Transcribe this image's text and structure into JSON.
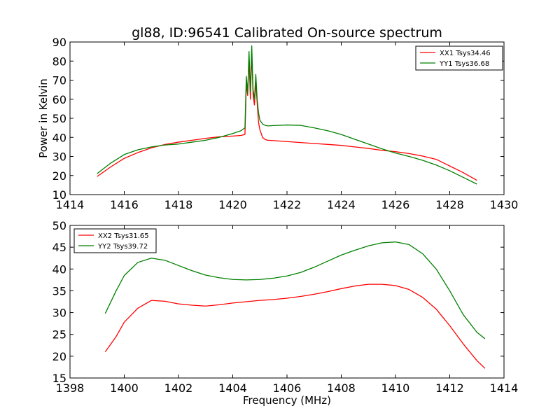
{
  "figure": {
    "title": "gl88, ID:96541 Calibrated On-source spectrum",
    "background": "#ffffff"
  },
  "chart_data": [
    {
      "type": "line",
      "title": "gl88, ID:96541 Calibrated On-source spectrum",
      "xlabel": "",
      "ylabel": "Power in Kelvin",
      "xlim": [
        1414,
        1430
      ],
      "ylim": [
        10,
        90
      ],
      "xticks": [
        1414,
        1416,
        1418,
        1420,
        1422,
        1424,
        1426,
        1428,
        1430
      ],
      "yticks": [
        10,
        20,
        30,
        40,
        50,
        60,
        70,
        80,
        90
      ],
      "grid": false,
      "legend_position": "top-right",
      "series": [
        {
          "name": "XX1 Tsys34.46",
          "color": "#ff0000",
          "x": [
            1415.0,
            1415.5,
            1416.0,
            1416.5,
            1417.0,
            1417.5,
            1418.0,
            1418.5,
            1419.0,
            1419.5,
            1420.0,
            1420.3,
            1420.45,
            1420.5,
            1420.55,
            1420.6,
            1420.65,
            1420.7,
            1420.75,
            1420.8,
            1420.85,
            1420.9,
            1420.95,
            1421.0,
            1421.1,
            1421.2,
            1421.3,
            1421.5,
            1422.0,
            1422.5,
            1423.0,
            1423.5,
            1424.0,
            1424.5,
            1425.0,
            1425.5,
            1426.0,
            1426.5,
            1427.0,
            1427.5,
            1428.0,
            1428.5,
            1429.0
          ],
          "y": [
            19.5,
            24.5,
            29.0,
            32.0,
            34.5,
            36.3,
            37.5,
            38.5,
            39.5,
            40.3,
            40.7,
            41.0,
            41.5,
            68.0,
            62.0,
            82.0,
            60.0,
            84.0,
            62.0,
            57.0,
            69.0,
            58.0,
            48.0,
            44.0,
            40.0,
            38.8,
            38.5,
            38.3,
            37.8,
            37.3,
            36.8,
            36.3,
            35.8,
            35.0,
            34.2,
            33.2,
            32.5,
            31.5,
            30.2,
            28.5,
            25.0,
            21.5,
            17.5
          ]
        },
        {
          "name": "YY1 Tsys36.68",
          "color": "#008000",
          "x": [
            1415.0,
            1415.5,
            1416.0,
            1416.5,
            1417.0,
            1417.5,
            1418.0,
            1418.5,
            1419.0,
            1419.5,
            1420.0,
            1420.3,
            1420.45,
            1420.5,
            1420.55,
            1420.6,
            1420.65,
            1420.7,
            1420.75,
            1420.8,
            1420.85,
            1420.9,
            1420.95,
            1421.0,
            1421.1,
            1421.2,
            1421.3,
            1421.5,
            1422.0,
            1422.5,
            1423.0,
            1423.5,
            1424.0,
            1424.5,
            1425.0,
            1425.5,
            1426.0,
            1426.5,
            1427.0,
            1427.5,
            1428.0,
            1428.5,
            1429.0
          ],
          "y": [
            21.0,
            26.5,
            31.0,
            33.5,
            35.0,
            36.0,
            36.5,
            37.5,
            38.5,
            40.0,
            42.0,
            43.5,
            45.0,
            72.0,
            63.0,
            85.0,
            64.0,
            88.0,
            65.0,
            60.0,
            73.0,
            60.0,
            53.0,
            49.0,
            47.0,
            46.3,
            46.0,
            46.2,
            46.5,
            46.3,
            45.0,
            43.5,
            41.5,
            39.0,
            36.5,
            34.0,
            31.8,
            30.0,
            28.0,
            25.5,
            22.5,
            19.0,
            15.5
          ]
        }
      ]
    },
    {
      "type": "line",
      "title": "",
      "xlabel": "Frequency (MHz)",
      "ylabel": "",
      "xlim": [
        1398,
        1414
      ],
      "ylim": [
        15,
        50
      ],
      "xticks": [
        1398,
        1400,
        1402,
        1404,
        1406,
        1408,
        1410,
        1412,
        1414
      ],
      "yticks": [
        15,
        20,
        25,
        30,
        35,
        40,
        45,
        50
      ],
      "grid": false,
      "legend_position": "top-left",
      "series": [
        {
          "name": "XX2 Tsys31.65",
          "color": "#ff0000",
          "x": [
            1399.3,
            1399.7,
            1400.0,
            1400.5,
            1401.0,
            1401.5,
            1402.0,
            1402.5,
            1403.0,
            1403.5,
            1404.0,
            1404.5,
            1405.0,
            1405.5,
            1406.0,
            1406.5,
            1407.0,
            1407.5,
            1408.0,
            1408.5,
            1409.0,
            1409.5,
            1410.0,
            1410.5,
            1411.0,
            1411.5,
            1412.0,
            1412.5,
            1413.0,
            1413.3
          ],
          "y": [
            21.0,
            24.5,
            27.8,
            31.0,
            32.8,
            32.6,
            32.0,
            31.7,
            31.5,
            31.8,
            32.2,
            32.5,
            32.8,
            33.0,
            33.3,
            33.7,
            34.2,
            34.8,
            35.5,
            36.1,
            36.5,
            36.5,
            36.2,
            35.3,
            33.5,
            30.8,
            27.0,
            22.8,
            19.0,
            17.2
          ]
        },
        {
          "name": "YY2 Tsys39.72",
          "color": "#008000",
          "x": [
            1399.3,
            1399.7,
            1400.0,
            1400.5,
            1401.0,
            1401.5,
            1402.0,
            1402.5,
            1403.0,
            1403.5,
            1404.0,
            1404.5,
            1405.0,
            1405.5,
            1406.0,
            1406.5,
            1407.0,
            1407.5,
            1408.0,
            1408.5,
            1409.0,
            1409.5,
            1410.0,
            1410.5,
            1411.0,
            1411.5,
            1412.0,
            1412.5,
            1413.0,
            1413.3
          ],
          "y": [
            29.8,
            35.0,
            38.5,
            41.5,
            42.5,
            42.0,
            40.8,
            39.6,
            38.6,
            38.0,
            37.6,
            37.5,
            37.6,
            37.9,
            38.4,
            39.2,
            40.4,
            41.8,
            43.2,
            44.3,
            45.3,
            46.0,
            46.2,
            45.6,
            43.5,
            40.0,
            35.0,
            29.5,
            25.5,
            24.0
          ]
        }
      ]
    }
  ]
}
